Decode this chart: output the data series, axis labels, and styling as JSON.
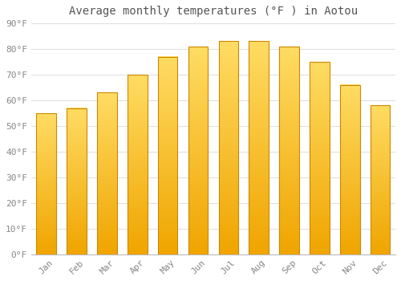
{
  "title": "Average monthly temperatures (°F ) in Aotou",
  "months": [
    "Jan",
    "Feb",
    "Mar",
    "Apr",
    "May",
    "Jun",
    "Jul",
    "Aug",
    "Sep",
    "Oct",
    "Nov",
    "Dec"
  ],
  "values": [
    55,
    57,
    63,
    70,
    77,
    81,
    83,
    83,
    81,
    75,
    66,
    58
  ],
  "bar_color_top": "#FFD966",
  "bar_color_bottom": "#F0A500",
  "bar_edge_color": "#CC8800",
  "ylim": [
    0,
    90
  ],
  "yticks": [
    0,
    10,
    20,
    30,
    40,
    50,
    60,
    70,
    80,
    90
  ],
  "ytick_labels": [
    "0°F",
    "10°F",
    "20°F",
    "30°F",
    "40°F",
    "50°F",
    "60°F",
    "70°F",
    "80°F",
    "90°F"
  ],
  "background_color": "#ffffff",
  "grid_color": "#e0e0e0",
  "title_fontsize": 10,
  "tick_fontsize": 8,
  "bar_width": 0.65,
  "tick_label_color": "#888888",
  "title_color": "#555555"
}
